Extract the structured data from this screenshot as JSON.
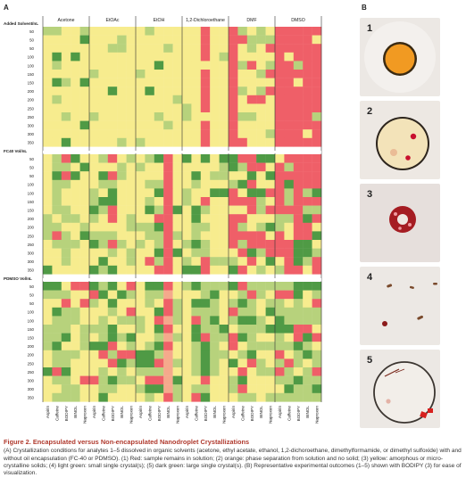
{
  "panels": {
    "a": "A",
    "b": "B"
  },
  "figure": {
    "solvents": [
      "Acetone",
      "EtOAc",
      "EtOH",
      "1,2-Dichloroethane",
      "DMF",
      "DMSO"
    ],
    "analytes": [
      "Aspirin",
      "Caffeine",
      "BODIPY",
      "BINOL",
      "Naproxen"
    ],
    "section_labels": [
      "Added Solvent/nL",
      "FC40 Vol/nL",
      "PDMSO Vol/nL"
    ],
    "volumes": [
      "50",
      "50",
      "50",
      "100",
      "100",
      "150",
      "150",
      "200",
      "200",
      "250",
      "250",
      "300",
      "300",
      "350"
    ]
  },
  "colors": {
    "red": "#ef5f68",
    "orange": "#f5a98c",
    "yellow": "#f7ec8e",
    "light_green": "#b7d27c",
    "dark_green": "#4f9a45"
  },
  "photos": [
    {
      "number": "1"
    },
    {
      "number": "2"
    },
    {
      "number": "3"
    },
    {
      "number": "4"
    },
    {
      "number": "5"
    }
  ],
  "caption": {
    "title": "Figure 2. Encapsulated versus Non-encapsulated Nanodroplet Crystallizations",
    "body": "(A) Crystallization conditions for analytes 1–5 dissolved in organic solvents (acetone, ethyl acetate, ethanol, 1,2-dichoroethane, dimethylformamide, or dimethyl sulfoxide) with and without oil encapsulation (FC-40 or PDMSO). (1) Red: sample remains in solution; (2) orange: phase separation from solution and no solid; (3) yellow: amorphous or micro-crystalline solids; (4) light green: small single crystal(s); (5) dark green: large single crystal(s). (B) Representative experimental outcomes (1–5) shown with BODIPY (3) for ease of visualization."
  }
}
